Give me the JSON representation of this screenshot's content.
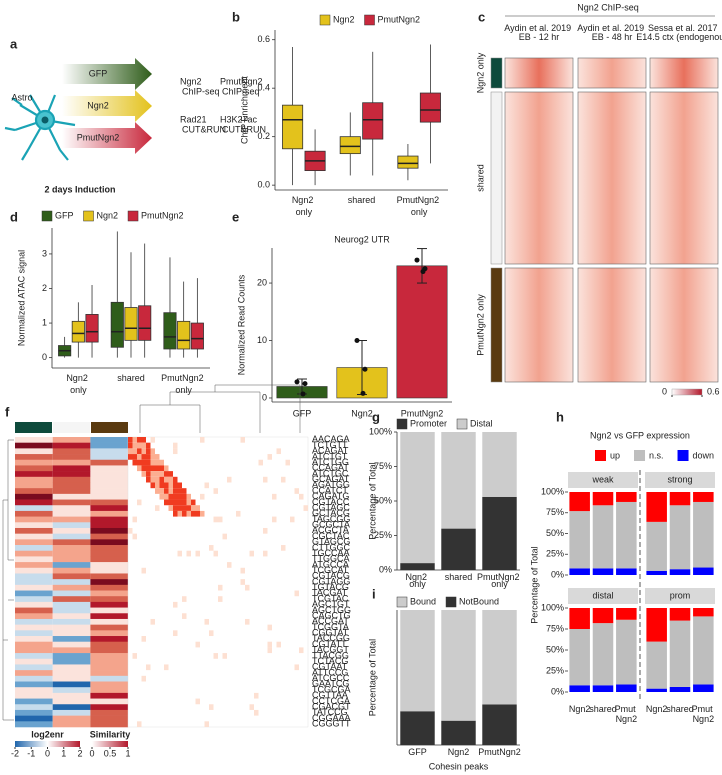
{
  "panel_labels": [
    "a",
    "b",
    "c",
    "d",
    "e",
    "f",
    "g",
    "h",
    "i"
  ],
  "diagram": {
    "cell_label": "Astro",
    "induction": "2 days Induction",
    "arrows": [
      "GFP",
      "Ngn2",
      "PmutNgn2"
    ],
    "assays": [
      {
        "target": "Ngn2",
        "method": "ChIP-seq"
      },
      {
        "target": "PmutNgn2",
        "method": "ChIP-seq"
      },
      {
        "target": "Rad21",
        "method": "CUT&RUN"
      },
      {
        "target": "H3K27ac",
        "method": "CUT&RUN"
      }
    ]
  },
  "chart_data": [
    {
      "type": "box",
      "y_label": "ChIP Enrichment",
      "categories": [
        "Ngn2 only",
        "shared",
        "PmutNgn2 only"
      ],
      "ylim": [
        -0.02,
        0.64
      ],
      "yticks": [
        {
          "value": 0,
          "label": "0.0"
        },
        {
          "value": 0.2,
          "label": "0.2"
        },
        {
          "value": 0.4,
          "label": "0.4"
        },
        {
          "value": 0.6,
          "label": "0.6"
        }
      ],
      "series": [
        {
          "name": "Ngn2",
          "color": "#e3c21c",
          "whislo": [
            0,
            0.04,
            0.02
          ],
          "q1": [
            0.15,
            0.13,
            0.07
          ],
          "median": [
            0.27,
            0.16,
            0.09
          ],
          "q3": [
            0.33,
            0.2,
            0.12
          ],
          "whishi": [
            0.57,
            0.3,
            0.17
          ]
        },
        {
          "name": "PmutNgn2",
          "color": "#c8283c",
          "whislo": [
            0,
            0.04,
            0.09
          ],
          "q1": [
            0.06,
            0.19,
            0.26
          ],
          "median": [
            0.1,
            0.27,
            0.31
          ],
          "q3": [
            0.14,
            0.34,
            0.38
          ],
          "whishi": [
            0.23,
            0.55,
            0.58
          ]
        }
      ]
    },
    {
      "type": "heatmap",
      "title": "Ngn2 ChIP-seq",
      "columns": [
        "Aydin et al. 2019 EB - 12 hr",
        "Aydin et al. 2019 EB - 48 hr",
        "Sessa et al. 2017 E14.5 ctx (endogenous)"
      ],
      "rows": [
        "Ngn2 only",
        "shared",
        "PmutNgn2 only"
      ],
      "colorbar_ticks": [
        0,
        0.6
      ]
    },
    {
      "type": "box",
      "y_label": "Normalized ATAC signal",
      "categories": [
        "Ngn2 only",
        "shared",
        "PmutNgn2 only"
      ],
      "ylim": [
        -0.3,
        3.75
      ],
      "yticks": [
        0,
        1,
        2,
        3
      ],
      "series": [
        {
          "name": "GFP",
          "color": "#2f5d1a",
          "whislo": [
            0,
            0,
            0
          ],
          "q1": [
            0.05,
            0.3,
            0.25
          ],
          "median": [
            0.2,
            0.75,
            0.6
          ],
          "q3": [
            0.35,
            1.6,
            1.3
          ],
          "whishi": [
            0.6,
            3.65,
            2.9
          ]
        },
        {
          "name": "Ngn2",
          "color": "#e3c21c",
          "whislo": [
            0,
            0,
            0
          ],
          "q1": [
            0.45,
            0.5,
            0.25
          ],
          "median": [
            0.7,
            0.85,
            0.5
          ],
          "q3": [
            1.05,
            1.45,
            1.05
          ],
          "whishi": [
            1.6,
            3.05,
            2.2
          ]
        },
        {
          "name": "PmutNgn2",
          "color": "#c8283c",
          "whislo": [
            0,
            0,
            0
          ],
          "q1": [
            0.45,
            0.5,
            0.25
          ],
          "median": [
            0.75,
            0.85,
            0.55
          ],
          "q3": [
            1.25,
            1.5,
            1.0
          ],
          "whishi": [
            2.1,
            3.3,
            2.3
          ]
        }
      ]
    },
    {
      "type": "bar",
      "title": "Neurog2 UTR",
      "y_label": "Normalized Read Counts",
      "categories": [
        "GFP",
        "Ngn2",
        "PmutNgn2"
      ],
      "values": [
        2,
        5.3,
        23
      ],
      "errors": [
        1.3,
        4.7,
        3
      ],
      "colors": [
        "#2f5d1a",
        "#e3c21c",
        "#c8283c"
      ],
      "points": [
        [
          2.8,
          2.5,
          0.7
        ],
        [
          10,
          5,
          0.8
        ],
        [
          24,
          22.5,
          22
        ]
      ],
      "ylim": [
        -0.7,
        26.1
      ],
      "yticks": [
        0,
        10,
        20
      ]
    },
    {
      "type": "kmer-heatmap",
      "kmers": [
        "AACAGA",
        "TCTGTT",
        "ACAGAT",
        "ATCTGT",
        "ATCTGG",
        "CCAGAT",
        "ATCTGC",
        "GCAGAT",
        "AGATGG",
        "CCATCT",
        "CAGATG",
        "CGTACC",
        "CGTAGC",
        "GCTACG",
        "TAGCGG",
        "GCGCTA",
        "ACGCTA",
        "CGCTAC",
        "GTAGCG",
        "CTTGGC",
        "TGCCAA",
        "TTGGCA",
        "ATGCCA",
        "TCGCAT",
        "CGTACG",
        "CGTAGG",
        "TGTACG",
        "TACGAT",
        "TCGTAC",
        "AGCTGT",
        "AGCTGG",
        "CAGCTG",
        "ACCGAT",
        "TCGGTA",
        "CGGTAT",
        "TACCGG",
        "CGTATT",
        "TACGGT",
        "TTACGG",
        "TCTACG",
        "CGTAAT",
        "ATTCCG",
        "ATCGCC",
        "GAATCG",
        "TCGCGA",
        "CGTTAA",
        "CCTCGA",
        "CGACGT",
        "TATCCG",
        "CGGAAA",
        "CGGGTT"
      ],
      "legends": [
        {
          "title": "log2enr",
          "ticks": [
            -2,
            -1,
            0,
            1,
            2
          ]
        },
        {
          "title": "Similarity",
          "ticks": [
            0,
            0.5,
            1
          ]
        }
      ]
    },
    {
      "type": "stacked-bar",
      "y_label": "Percentage of Total",
      "categories": [
        "Ngn2 only",
        "shared",
        "PmutNgn2 only"
      ],
      "series": [
        {
          "name": "Promoter",
          "color": "#333333",
          "values": [
            5,
            30,
            53
          ]
        },
        {
          "name": "Distal",
          "color": "#cccccc",
          "values": [
            95,
            70,
            47
          ]
        }
      ],
      "ylim": [
        0,
        100
      ],
      "yticks": [
        {
          "value": 0,
          "label": "0%"
        },
        {
          "value": 25,
          "label": "25%"
        },
        {
          "value": 50,
          "label": "50%"
        },
        {
          "value": 75,
          "label": "75%"
        },
        {
          "value": 100,
          "label": "100%"
        }
      ]
    },
    {
      "type": "facet-stacked-bar",
      "title": "Ngn2 vs GFP expression",
      "y_label": "Percentage of Total",
      "categories": [
        "Ngn2",
        "shared",
        "Pmut Ngn2"
      ],
      "series": [
        {
          "name": "up",
          "color": "#ff0000"
        },
        {
          "name": "n.s.",
          "color": "#bebebe"
        },
        {
          "name": "down",
          "color": "#0000ff"
        }
      ],
      "ylim": [
        0,
        100
      ],
      "yticks": [
        {
          "value": 0,
          "label": "0%"
        },
        {
          "value": 25,
          "label": "25%"
        },
        {
          "value": 50,
          "label": "50%"
        },
        {
          "value": 75,
          "label": "75%"
        },
        {
          "value": 100,
          "label": "100%"
        }
      ],
      "facets": [
        {
          "title": "weak",
          "values": [
            [
              23,
              16,
              12
            ],
            [
              69,
              76,
              80
            ],
            [
              8,
              8,
              8
            ]
          ]
        },
        {
          "title": "strong",
          "values": [
            [
              36,
              16,
              12
            ],
            [
              59,
              77,
              79
            ],
            [
              5,
              7,
              9
            ]
          ]
        },
        {
          "title": "distal",
          "values": [
            [
              25,
              18,
              14
            ],
            [
              67,
              74,
              77
            ],
            [
              8,
              8,
              9
            ]
          ]
        },
        {
          "title": "prom",
          "values": [
            [
              40,
              15,
              10
            ],
            [
              56,
              79,
              81
            ],
            [
              4,
              6,
              9
            ]
          ]
        }
      ]
    },
    {
      "type": "stacked-bar",
      "x_label": "Cohesin peaks",
      "y_label": "Percentage of Total",
      "categories": [
        "GFP",
        "Ngn2",
        "PmutNgn2"
      ],
      "stack_from_last": true,
      "series": [
        {
          "name": "Bound",
          "color": "#cccccc",
          "values": [
            75,
            82,
            70
          ]
        },
        {
          "name": "NotBound",
          "color": "#333333",
          "values": [
            25,
            18,
            30
          ]
        }
      ],
      "ylim": [
        0,
        100
      ]
    }
  ]
}
